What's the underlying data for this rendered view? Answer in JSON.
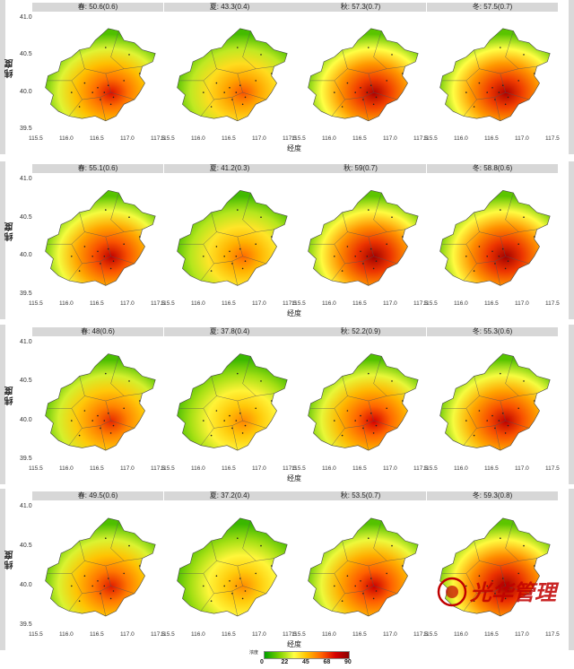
{
  "chart_data": {
    "type": "heatmap",
    "ylabel": "纬度",
    "xlabel": "经度",
    "xticks": [
      "115.5",
      "116.0",
      "116.5",
      "117.0",
      "117.5"
    ],
    "yticks": [
      "41.0",
      "40.5",
      "40.0",
      "39.5"
    ],
    "rows": [
      {
        "panels": [
          {
            "label": "春: 50.6(0.6)",
            "value": 50.6
          },
          {
            "label": "夏: 43.3(0.4)",
            "value": 43.3
          },
          {
            "label": "秋: 57.3(0.7)",
            "value": 57.3
          },
          {
            "label": "冬: 57.5(0.7)",
            "value": 57.5
          }
        ]
      },
      {
        "panels": [
          {
            "label": "春: 55.1(0.6)",
            "value": 55.1
          },
          {
            "label": "夏: 41.2(0.3)",
            "value": 41.2
          },
          {
            "label": "秋: 59(0.7)",
            "value": 59
          },
          {
            "label": "冬: 58.8(0.6)",
            "value": 58.8
          }
        ]
      },
      {
        "panels": [
          {
            "label": "春: 48(0.6)",
            "value": 48
          },
          {
            "label": "夏: 37.8(0.4)",
            "value": 37.8
          },
          {
            "label": "秋: 52.2(0.9)",
            "value": 52.2
          },
          {
            "label": "冬: 55.3(0.6)",
            "value": 55.3
          }
        ]
      },
      {
        "panels": [
          {
            "label": "春: 49.5(0.6)",
            "value": 49.5
          },
          {
            "label": "夏: 37.2(0.4)",
            "value": 37.2
          },
          {
            "label": "秋: 53.5(0.7)",
            "value": 53.5
          },
          {
            "label": "冬: 59.3(0.8)",
            "value": 59.3
          }
        ]
      }
    ],
    "legend": {
      "title": "浓度",
      "ticks": [
        "0",
        "22",
        "45",
        "68",
        "90"
      ],
      "colors": [
        "#00a000",
        "#ffff44",
        "#ff6000",
        "#8b0000"
      ]
    }
  },
  "watermark": {
    "text": "光华管理",
    "color": "#c00000"
  }
}
